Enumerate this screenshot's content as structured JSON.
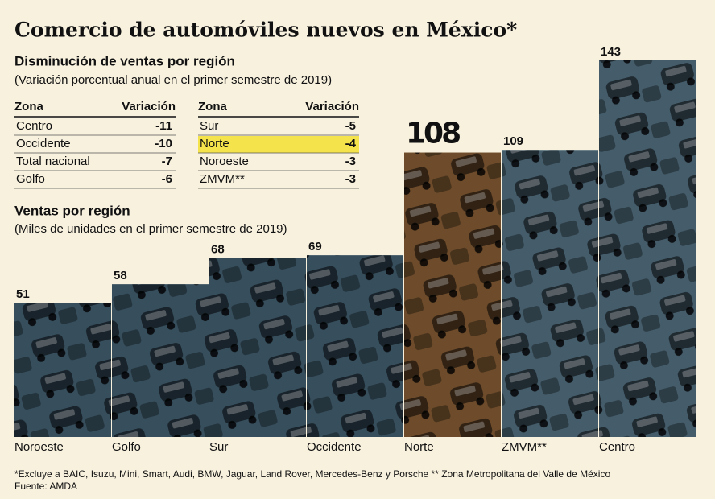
{
  "title": "Comercio de automóviles nuevos en México*",
  "tables_title": "Disminución de ventas por región",
  "tables_subtitle": "(Variación porcentual anual en el primer semestre de 2019)",
  "highlight_color": "#f4e34a",
  "tables": [
    {
      "header": [
        "Zona",
        "Variación"
      ],
      "rows": [
        {
          "zona": "Centro",
          "variacion": -11
        },
        {
          "zona": "Occidente",
          "variacion": -10
        },
        {
          "zona": "Total nacional",
          "variacion": -7
        },
        {
          "zona": "Golfo",
          "variacion": -6
        }
      ]
    },
    {
      "header": [
        "Zona",
        "Variación"
      ],
      "rows": [
        {
          "zona": "Sur",
          "variacion": -5
        },
        {
          "zona": "Norte",
          "variacion": -4,
          "highlight": true
        },
        {
          "zona": "Noroeste",
          "variacion": -3
        },
        {
          "zona": "ZMVM**",
          "variacion": -3
        }
      ]
    }
  ],
  "chart_data": {
    "type": "bar",
    "title": "Ventas por región",
    "subtitle": "(Miles de unidades en el primer semestre de 2019)",
    "categories": [
      "Noroeste",
      "Golfo",
      "Sur",
      "Occidente",
      "Norte",
      "ZMVM**",
      "Centro"
    ],
    "values": [
      51,
      58,
      68,
      69,
      108,
      109,
      143
    ],
    "colors": [
      "#6f9fbd",
      "#6f9fbd",
      "#6f9fbd",
      "#6f9fbd",
      "#e89a4e",
      "#8fbfdc",
      "#8fbfdc"
    ],
    "emphasis": "Norte"
  },
  "footnote": "*Excluye a BAIC, Isuzu, Mini, Smart, Audi, BMW, Jaguar, Land Rover, Mercedes-Benz y Porsche ** Zona Metropolitana del Valle de México",
  "source": "Fuente: AMDA"
}
